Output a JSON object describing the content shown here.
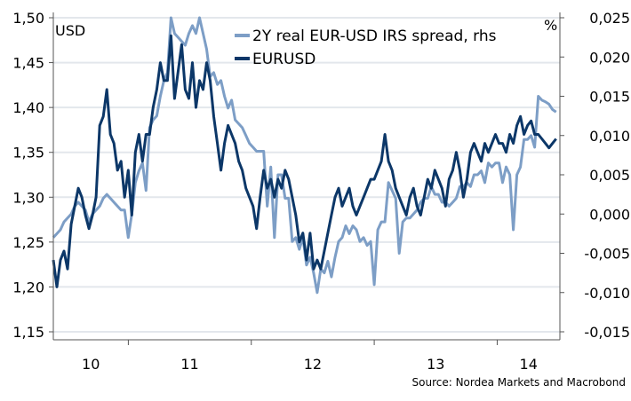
{
  "chart_data": {
    "type": "line",
    "title": "",
    "left_axis": {
      "unit_label": "USD",
      "range": [
        1.15,
        1.5
      ],
      "ticks": [
        "1,15",
        "1,20",
        "1,25",
        "1,30",
        "1,35",
        "1,40",
        "1,45",
        "1,50"
      ],
      "tick_values": [
        1.15,
        1.2,
        1.25,
        1.3,
        1.35,
        1.4,
        1.45,
        1.5
      ]
    },
    "right_axis": {
      "unit_label": "%",
      "range": [
        -0.015,
        0.025
      ],
      "ticks": [
        "-0,015",
        "-0,010",
        "-0,005",
        "0,000",
        "0,005",
        "0,010",
        "0,015",
        "0,020",
        "0,025"
      ],
      "tick_values": [
        -0.015,
        -0.01,
        -0.005,
        0.0,
        0.005,
        0.01,
        0.015,
        0.02,
        0.025
      ]
    },
    "x_axis": {
      "range": [
        2010.39,
        2014.51
      ],
      "year_boundaries": [
        2011,
        2012,
        2013,
        2014
      ],
      "labels": [
        "10",
        "11",
        "12",
        "13",
        "14"
      ]
    },
    "x_start": 2010.39,
    "x_step": 0.029,
    "grid": true,
    "legend_position": "top-center",
    "series": [
      {
        "name": "2Y real EUR-USD IRS spread, rhs",
        "axis": "right",
        "color": "#7d9ec6",
        "values": [
          -0.003,
          -0.0025,
          -0.002,
          -0.001,
          -0.0005,
          0.0,
          0.001,
          0.0015,
          0.001,
          0.0005,
          -0.001,
          0.0,
          0.0005,
          0.001,
          0.002,
          0.0025,
          0.002,
          0.0015,
          0.001,
          0.0005,
          0.0005,
          -0.003,
          0.0,
          0.004,
          0.0055,
          0.0065,
          0.003,
          0.011,
          0.012,
          0.0125,
          0.015,
          0.017,
          0.018,
          0.025,
          0.023,
          0.0225,
          0.022,
          0.0215,
          0.023,
          0.024,
          0.023,
          0.025,
          0.023,
          0.021,
          0.0175,
          0.018,
          0.0165,
          0.017,
          0.015,
          0.0135,
          0.0145,
          0.012,
          0.0115,
          0.011,
          0.01,
          0.009,
          0.0085,
          0.008,
          0.008,
          0.008,
          0.001,
          0.006,
          -0.003,
          0.005,
          0.005,
          0.002,
          0.002,
          -0.0035,
          -0.003,
          -0.0045,
          -0.003,
          -0.0065,
          -0.0055,
          -0.0075,
          -0.01,
          -0.007,
          -0.0075,
          -0.006,
          -0.008,
          -0.0055,
          -0.0035,
          -0.003,
          -0.0015,
          -0.0025,
          -0.0015,
          -0.002,
          -0.0035,
          -0.003,
          -0.004,
          -0.0035,
          -0.009,
          -0.002,
          -0.001,
          -0.001,
          0.004,
          0.003,
          0.002,
          -0.005,
          -0.001,
          -0.0005,
          -0.0005,
          0.0,
          0.0005,
          0.0015,
          0.002,
          0.002,
          0.0035,
          0.0025,
          0.0025,
          0.0015,
          0.0015,
          0.001,
          0.0015,
          0.002,
          0.0035,
          0.0035,
          0.004,
          0.0035,
          0.005,
          0.005,
          0.0055,
          0.004,
          0.0065,
          0.006,
          0.0065,
          0.0065,
          0.004,
          0.006,
          0.005,
          -0.002,
          0.005,
          0.006,
          0.0095,
          0.0095,
          0.01,
          0.0085,
          0.015,
          0.0145,
          0.0143,
          0.014,
          0.0133,
          0.013
        ]
      },
      {
        "name": "EURUSD",
        "axis": "left",
        "color": "#0c3768",
        "values": [
          1.23,
          1.2,
          1.23,
          1.24,
          1.22,
          1.27,
          1.29,
          1.31,
          1.3,
          1.28,
          1.265,
          1.28,
          1.3,
          1.38,
          1.39,
          1.42,
          1.37,
          1.36,
          1.33,
          1.34,
          1.3,
          1.33,
          1.28,
          1.35,
          1.37,
          1.34,
          1.37,
          1.37,
          1.4,
          1.42,
          1.45,
          1.43,
          1.43,
          1.48,
          1.41,
          1.44,
          1.47,
          1.42,
          1.41,
          1.45,
          1.4,
          1.43,
          1.42,
          1.45,
          1.43,
          1.39,
          1.36,
          1.33,
          1.36,
          1.38,
          1.37,
          1.36,
          1.34,
          1.33,
          1.31,
          1.3,
          1.29,
          1.265,
          1.3,
          1.33,
          1.31,
          1.32,
          1.3,
          1.32,
          1.31,
          1.33,
          1.32,
          1.3,
          1.28,
          1.25,
          1.26,
          1.23,
          1.26,
          1.22,
          1.23,
          1.22,
          1.24,
          1.26,
          1.28,
          1.3,
          1.31,
          1.29,
          1.3,
          1.31,
          1.29,
          1.28,
          1.29,
          1.3,
          1.31,
          1.32,
          1.32,
          1.33,
          1.34,
          1.37,
          1.34,
          1.33,
          1.31,
          1.3,
          1.29,
          1.28,
          1.3,
          1.31,
          1.29,
          1.28,
          1.3,
          1.32,
          1.31,
          1.33,
          1.32,
          1.31,
          1.29,
          1.32,
          1.33,
          1.35,
          1.33,
          1.3,
          1.32,
          1.35,
          1.36,
          1.35,
          1.34,
          1.36,
          1.35,
          1.36,
          1.37,
          1.36,
          1.36,
          1.35,
          1.37,
          1.36,
          1.38,
          1.39,
          1.37,
          1.38,
          1.385,
          1.37,
          1.37,
          1.365,
          1.36,
          1.355,
          1.36,
          1.365
        ]
      }
    ],
    "source": "Source: Nordea Markets and Macrobond"
  }
}
